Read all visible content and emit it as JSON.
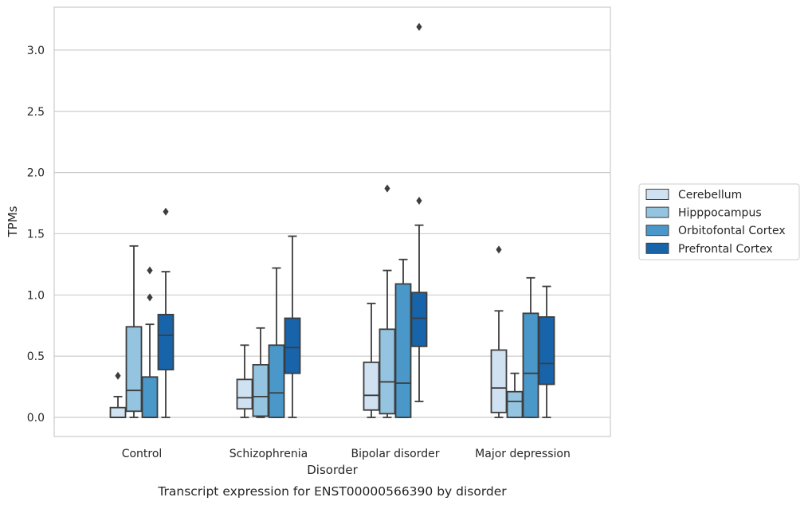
{
  "chart_data": {
    "type": "box",
    "title": "",
    "caption": "Transcript expression for ENST00000566390 by disorder",
    "xlabel": "Disorder",
    "ylabel": "TPMs",
    "ylim": [
      -0.15,
      3.35
    ],
    "yticks": [
      "0.0",
      "0.5",
      "1.0",
      "1.5",
      "2.0",
      "2.5",
      "3.0"
    ],
    "grid": "horizontal",
    "legend_position": "right-outside",
    "categories": [
      "Control",
      "Schizophrenia",
      "Bipolar disorder",
      "Major depression"
    ],
    "series": [
      {
        "name": "Cerebellum",
        "color": "#d0e1f2",
        "boxes": [
          {
            "min": 0.0,
            "q1": 0.0,
            "median": 0.0,
            "q3": 0.08,
            "max": 0.17,
            "outliers": [
              0.34
            ]
          },
          {
            "min": 0.0,
            "q1": 0.07,
            "median": 0.16,
            "q3": 0.31,
            "max": 0.59,
            "outliers": []
          },
          {
            "min": 0.0,
            "q1": 0.06,
            "median": 0.18,
            "q3": 0.45,
            "max": 0.93,
            "outliers": []
          },
          {
            "min": 0.0,
            "q1": 0.04,
            "median": 0.24,
            "q3": 0.55,
            "max": 0.87,
            "outliers": [
              1.37
            ]
          }
        ]
      },
      {
        "name": "Hipppocampus",
        "color": "#94c4df",
        "boxes": [
          {
            "min": 0.0,
            "q1": 0.05,
            "median": 0.22,
            "q3": 0.74,
            "max": 1.4,
            "outliers": []
          },
          {
            "min": 0.0,
            "q1": 0.01,
            "median": 0.17,
            "q3": 0.43,
            "max": 0.73,
            "outliers": []
          },
          {
            "min": 0.0,
            "q1": 0.03,
            "median": 0.29,
            "q3": 0.72,
            "max": 1.2,
            "outliers": [
              1.87
            ]
          },
          {
            "min": 0.0,
            "q1": 0.0,
            "median": 0.13,
            "q3": 0.21,
            "max": 0.36,
            "outliers": []
          }
        ]
      },
      {
        "name": "Orbitofontal Cortex",
        "color": "#4a98c9",
        "boxes": [
          {
            "min": 0.0,
            "q1": 0.0,
            "median": 0.0,
            "q3": 0.33,
            "max": 0.76,
            "outliers": [
              0.98,
              1.2
            ]
          },
          {
            "min": 0.0,
            "q1": 0.0,
            "median": 0.2,
            "q3": 0.59,
            "max": 1.22,
            "outliers": []
          },
          {
            "min": 0.0,
            "q1": 0.0,
            "median": 0.28,
            "q3": 1.09,
            "max": 1.29,
            "outliers": []
          },
          {
            "min": 0.0,
            "q1": 0.0,
            "median": 0.36,
            "q3": 0.85,
            "max": 1.14,
            "outliers": []
          }
        ]
      },
      {
        "name": "Prefrontal Cortex",
        "color": "#1764ab",
        "boxes": [
          {
            "min": 0.0,
            "q1": 0.39,
            "median": 0.67,
            "q3": 0.84,
            "max": 1.19,
            "outliers": [
              1.68
            ]
          },
          {
            "min": 0.0,
            "q1": 0.36,
            "median": 0.57,
            "q3": 0.81,
            "max": 1.48,
            "outliers": []
          },
          {
            "min": 0.13,
            "q1": 0.58,
            "median": 0.81,
            "q3": 1.02,
            "max": 1.57,
            "outliers": [
              1.77,
              3.19
            ]
          },
          {
            "min": 0.0,
            "q1": 0.27,
            "median": 0.44,
            "q3": 0.82,
            "max": 1.07,
            "outliers": []
          }
        ]
      }
    ]
  }
}
